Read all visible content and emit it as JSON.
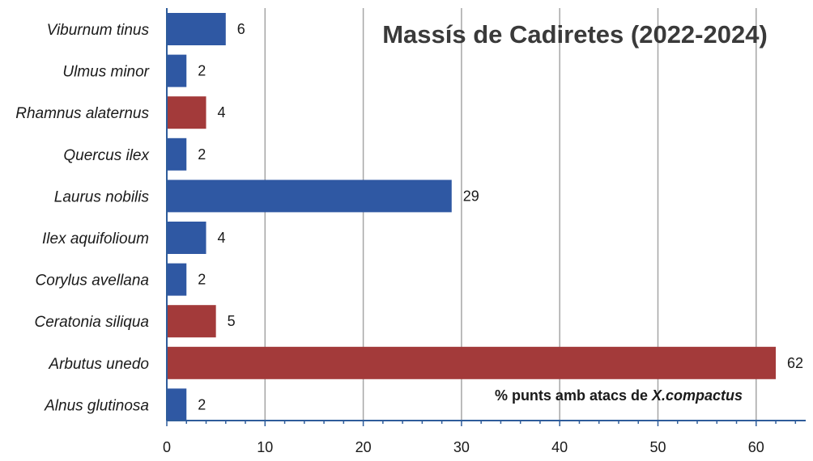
{
  "chart_data": {
    "type": "bar",
    "orientation": "horizontal",
    "title": "Massís de Cadiretes (2022-2024)",
    "xlabel_prefix": "% punts amb atacs de ",
    "xlabel_species": "X.compactus",
    "xlim": [
      0,
      65
    ],
    "xticks": [
      0,
      10,
      20,
      30,
      40,
      50,
      60
    ],
    "grid": true,
    "categories": [
      "Viburnum tinus",
      "Ulmus minor",
      "Rhamnus alaternus",
      "Quercus ilex",
      "Laurus nobilis",
      "Ilex aquifolioum",
      "Corylus avellana",
      "Ceratonia siliqua",
      "Arbutus unedo",
      "Alnus glutinosa"
    ],
    "values": [
      6,
      2,
      4,
      2,
      29,
      4,
      2,
      5,
      62,
      2
    ],
    "bar_colors": [
      "#2f58a3",
      "#2f58a3",
      "#a33a3a",
      "#2f58a3",
      "#2f58a3",
      "#2f58a3",
      "#2f58a3",
      "#a33a3a",
      "#a33a3a",
      "#2f58a3"
    ],
    "colors": {
      "blue": "#2f58a3",
      "red": "#a33a3a",
      "grid": "#a6a6a6",
      "axis": "#2e5c9a"
    }
  }
}
